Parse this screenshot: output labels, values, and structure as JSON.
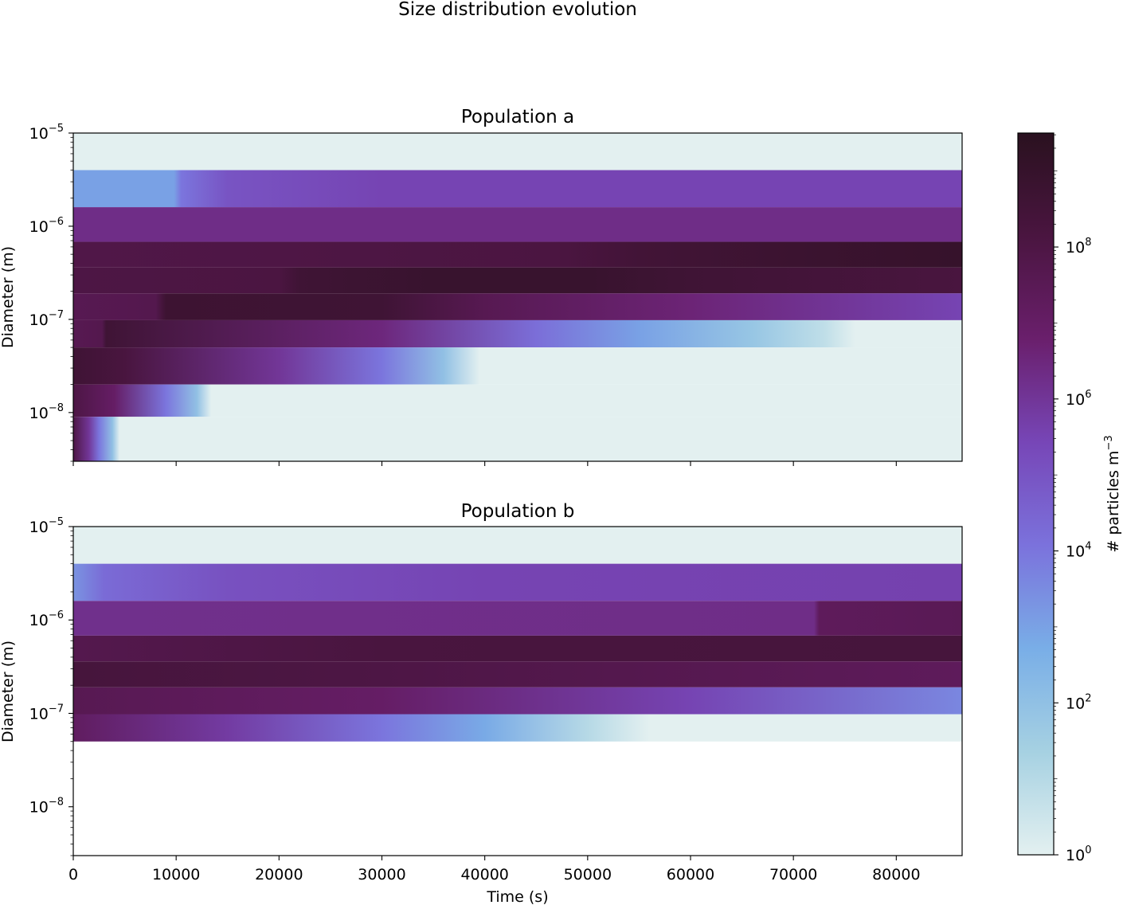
{
  "chart_data": [
    {
      "type": "heatmap",
      "title": "Population a",
      "xlabel": "",
      "ylabel": "Diameter (m)",
      "x_range": [
        0,
        86400
      ],
      "y_scale": "log",
      "y_ticks": [
        "10^-5",
        "10^-6",
        "10^-7",
        "10^-8"
      ],
      "bins": [
        {
          "d_low": 4e-06,
          "d_high": 1e-05,
          "stops": [
            [
              0,
              0
            ]
          ]
        },
        {
          "d_low": 1.6e-06,
          "d_high": 4e-06,
          "stops": [
            [
              0,
              3
            ],
            [
              9800,
              3
            ],
            [
              10500,
              4
            ],
            [
              15000,
              5
            ],
            [
              30000,
              5.5
            ],
            [
              86400,
              5.5
            ]
          ]
        },
        {
          "d_low": 6.8e-07,
          "d_high": 1.6e-06,
          "stops": [
            [
              0,
              6.3
            ],
            [
              86400,
              6.3
            ]
          ]
        },
        {
          "d_low": 3.6e-07,
          "d_high": 6.8e-07,
          "stops": [
            [
              0,
              7.9
            ],
            [
              47000,
              8.1
            ],
            [
              55000,
              8.5
            ],
            [
              70000,
              8.8
            ],
            [
              86400,
              9.0
            ]
          ]
        },
        {
          "d_low": 1.9e-07,
          "d_high": 3.6e-07,
          "stops": [
            [
              0,
              8.0
            ],
            [
              20000,
              8.1
            ],
            [
              22000,
              8.6
            ],
            [
              35000,
              8.9
            ],
            [
              50000,
              8.9
            ],
            [
              60000,
              8.6
            ],
            [
              86400,
              8.2
            ]
          ]
        },
        {
          "d_low": 9.8e-08,
          "d_high": 1.9e-07,
          "stops": [
            [
              0,
              7.6
            ],
            [
              8000,
              7.7
            ],
            [
              9000,
              8.7
            ],
            [
              30000,
              8.6
            ],
            [
              40000,
              7.6
            ],
            [
              60000,
              6.6
            ],
            [
              86400,
              5.5
            ]
          ]
        },
        {
          "d_low": 5e-08,
          "d_high": 9.8e-08,
          "stops": [
            [
              0,
              7.6
            ],
            [
              2800,
              7.7
            ],
            [
              3200,
              8.6
            ],
            [
              30000,
              6.5
            ],
            [
              45000,
              4.2
            ],
            [
              55000,
              3.0
            ],
            [
              66000,
              1.8
            ],
            [
              73000,
              0.8
            ],
            [
              76000,
              0
            ]
          ]
        },
        {
          "d_low": 2e-08,
          "d_high": 5e-08,
          "stops": [
            [
              0,
              8.6
            ],
            [
              5000,
              8.2
            ],
            [
              20000,
              6.0
            ],
            [
              30000,
              4.0
            ],
            [
              36000,
              2.0
            ],
            [
              39500,
              0
            ]
          ]
        },
        {
          "d_low": 9e-09,
          "d_high": 2e-08,
          "stops": [
            [
              0,
              8.0
            ],
            [
              4000,
              7.0
            ],
            [
              9000,
              4.0
            ],
            [
              12000,
              2.0
            ],
            [
              13400,
              0
            ]
          ]
        },
        {
          "d_low": 3e-09,
          "d_high": 9e-09,
          "stops": [
            [
              0,
              8.0
            ],
            [
              1500,
              6.0
            ],
            [
              2500,
              4.0
            ],
            [
              3800,
              2.0
            ],
            [
              4500,
              0
            ]
          ]
        }
      ]
    },
    {
      "type": "heatmap",
      "title": "Population b",
      "xlabel": "Time (s)",
      "ylabel": "Diameter (m)",
      "x_range": [
        0,
        86400
      ],
      "x_ticks": [
        0,
        10000,
        20000,
        30000,
        40000,
        50000,
        60000,
        70000,
        80000
      ],
      "y_scale": "log",
      "y_ticks": [
        "10^-5",
        "10^-6",
        "10^-7",
        "10^-8"
      ],
      "bins": [
        {
          "d_low": 4e-06,
          "d_high": 1e-05,
          "stops": [
            [
              0,
              0
            ]
          ]
        },
        {
          "d_low": 1.6e-06,
          "d_high": 4e-06,
          "stops": [
            [
              0,
              3.3
            ],
            [
              3000,
              4.3
            ],
            [
              15000,
              5.1
            ],
            [
              40000,
              5.5
            ],
            [
              86400,
              5.6
            ]
          ]
        },
        {
          "d_low": 6.8e-07,
          "d_high": 1.6e-06,
          "stops": [
            [
              0,
              6.2
            ],
            [
              72000,
              6.3
            ],
            [
              72500,
              7.3
            ],
            [
              86400,
              7.5
            ]
          ]
        },
        {
          "d_low": 3.6e-07,
          "d_high": 6.8e-07,
          "stops": [
            [
              0,
              7.7
            ],
            [
              30000,
              8.2
            ],
            [
              86400,
              8.3
            ]
          ]
        },
        {
          "d_low": 1.9e-07,
          "d_high": 3.6e-07,
          "stops": [
            [
              0,
              8.3
            ],
            [
              30000,
              8.0
            ],
            [
              86400,
              7.3
            ]
          ]
        },
        {
          "d_low": 9.8e-08,
          "d_high": 1.9e-07,
          "stops": [
            [
              0,
              7.6
            ],
            [
              30000,
              7.0
            ],
            [
              60000,
              5.5
            ],
            [
              86400,
              3.6
            ]
          ]
        },
        {
          "d_low": 5e-08,
          "d_high": 9.8e-08,
          "stops": [
            [
              0,
              7.2
            ],
            [
              15000,
              5.8
            ],
            [
              30000,
              4.0
            ],
            [
              40000,
              2.8
            ],
            [
              50000,
              1.0
            ],
            [
              56000,
              0
            ]
          ]
        }
      ]
    }
  ],
  "figure": {
    "title": "Size distribution evolution",
    "colorbar": {
      "label": "# particles m",
      "label_superscript": "−3",
      "ticks": [
        "10^0",
        "10^2",
        "10^4",
        "10^6",
        "10^8"
      ],
      "range_log10": [
        0,
        9.5
      ],
      "scale": "log"
    },
    "colormap": [
      "#e3f0f0",
      "#a6d1e2",
      "#79aee7",
      "#7b72dc",
      "#7746b7",
      "#6a1f6c",
      "#4a1540",
      "#2a111f"
    ]
  }
}
